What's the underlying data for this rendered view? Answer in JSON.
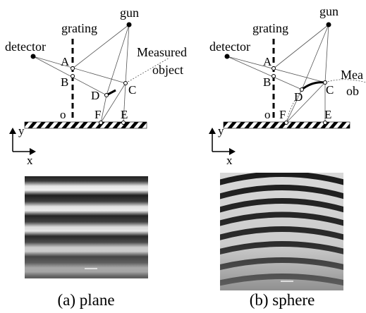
{
  "panels": [
    {
      "gun": "gun",
      "grating": "grating",
      "detector": "detector",
      "object_1": "Measured",
      "object_2": "object",
      "points": {
        "A": "A",
        "B": "B",
        "C": "C",
        "D": "D",
        "E": "E",
        "F": "F",
        "o": "o"
      },
      "axis_x": "x",
      "axis_y": "y",
      "caption": "(a) plane"
    },
    {
      "gun": "gun",
      "grating": "grating",
      "detector": "detector",
      "object_1": "Mea",
      "object_2": "ob",
      "points": {
        "A": "A",
        "B": "B",
        "C": "C",
        "D": "D",
        "E": "E",
        "F": "F",
        "o": "o"
      },
      "axis_x": "x",
      "axis_y": "y",
      "caption": "(b) sphere"
    }
  ]
}
